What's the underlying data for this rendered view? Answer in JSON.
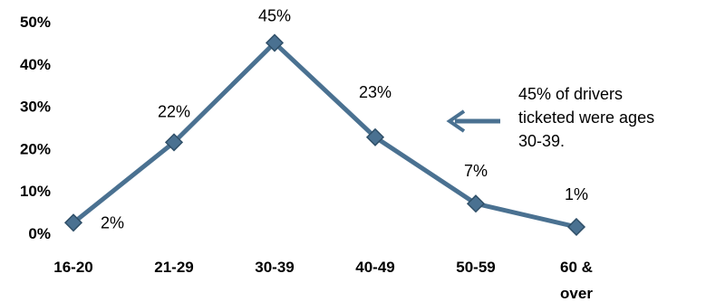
{
  "chart_data": {
    "type": "line",
    "categories": [
      "16-20",
      "21-29",
      "30-39",
      "40-49",
      "50-59",
      "60 & over"
    ],
    "category_lines": [
      [
        "16-20"
      ],
      [
        "21-29"
      ],
      [
        "30-39"
      ],
      [
        "40-49"
      ],
      [
        "50-59"
      ],
      [
        "60 &",
        "over"
      ]
    ],
    "values": [
      0.025,
      0.215,
      0.45,
      0.227,
      0.07,
      0.015
    ],
    "data_labels": [
      "2%",
      "22%",
      "45%",
      "23%",
      "7%",
      "1%"
    ],
    "yticks": [
      "0%",
      "10%",
      "20%",
      "30%",
      "40%",
      "50%"
    ],
    "ytick_values": [
      0,
      0.1,
      0.2,
      0.3,
      0.4,
      0.5
    ],
    "ylim": [
      0,
      0.5
    ],
    "grid": false,
    "legend": false,
    "annotation": {
      "lines": [
        "45% of drivers",
        "ticketed were ages",
        "30-39."
      ],
      "arrow": "left"
    },
    "colors": {
      "line": "#4a7191",
      "marker": "#4a7191",
      "arrow": "#4a7191"
    }
  }
}
